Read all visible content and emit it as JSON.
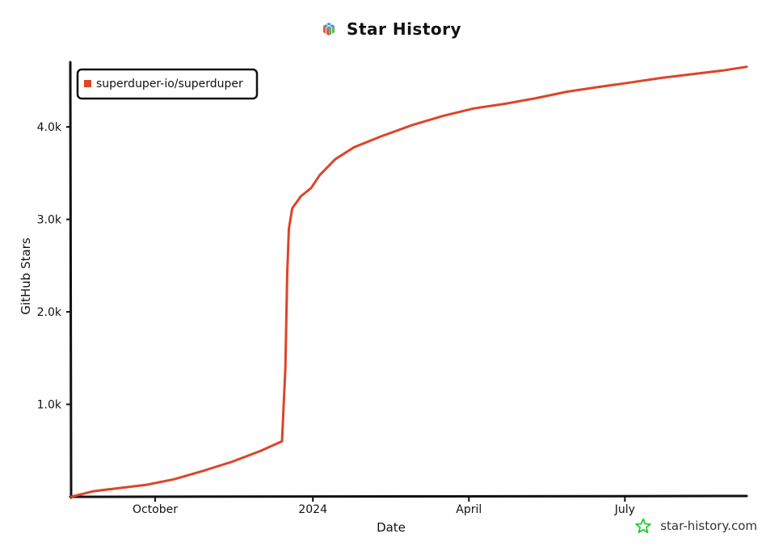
{
  "header": {
    "title": "Star History"
  },
  "watermark": {
    "text": "star-history.com"
  },
  "colors": {
    "series": "#dd4528",
    "axis": "#111111",
    "watermark_icon": "#22cc33"
  },
  "chart_data": {
    "type": "line",
    "xlabel": "Date",
    "ylabel": "GitHub Stars",
    "x_ticks": [
      {
        "label": "October",
        "date": "2023-10-01"
      },
      {
        "label": "2024",
        "date": "2024-01-01"
      },
      {
        "label": "April",
        "date": "2024-04-01"
      },
      {
        "label": "July",
        "date": "2024-07-01"
      }
    ],
    "y_ticks": [
      {
        "label": "1.0k",
        "value": 1000
      },
      {
        "label": "2.0k",
        "value": 2000
      },
      {
        "label": "3.0k",
        "value": 3000
      },
      {
        "label": "4.0k",
        "value": 4000
      }
    ],
    "xlim": [
      "2023-08-13",
      "2024-09-10"
    ],
    "ylim": [
      0,
      4700
    ],
    "legend_position": "top-left",
    "series": [
      {
        "name": "superduper-io/superduper",
        "points": [
          [
            "2023-08-13",
            0
          ],
          [
            "2023-08-26",
            60
          ],
          [
            "2023-09-08",
            90
          ],
          [
            "2023-09-26",
            130
          ],
          [
            "2023-10-12",
            190
          ],
          [
            "2023-10-29",
            280
          ],
          [
            "2023-11-15",
            380
          ],
          [
            "2023-12-02",
            500
          ],
          [
            "2023-12-14",
            600
          ],
          [
            "2023-12-16",
            1400
          ],
          [
            "2023-12-17",
            2400
          ],
          [
            "2023-12-18",
            2900
          ],
          [
            "2023-12-20",
            3120
          ],
          [
            "2023-12-25",
            3250
          ],
          [
            "2023-12-31",
            3340
          ],
          [
            "2024-01-05",
            3480
          ],
          [
            "2024-01-14",
            3650
          ],
          [
            "2024-01-25",
            3780
          ],
          [
            "2024-02-10",
            3900
          ],
          [
            "2024-02-28",
            4020
          ],
          [
            "2024-03-17",
            4120
          ],
          [
            "2024-04-04",
            4200
          ],
          [
            "2024-04-22",
            4250
          ],
          [
            "2024-05-10",
            4310
          ],
          [
            "2024-05-28",
            4380
          ],
          [
            "2024-06-15",
            4430
          ],
          [
            "2024-07-04",
            4480
          ],
          [
            "2024-07-22",
            4530
          ],
          [
            "2024-08-09",
            4570
          ],
          [
            "2024-08-27",
            4610
          ],
          [
            "2024-09-10",
            4650
          ]
        ]
      }
    ]
  }
}
